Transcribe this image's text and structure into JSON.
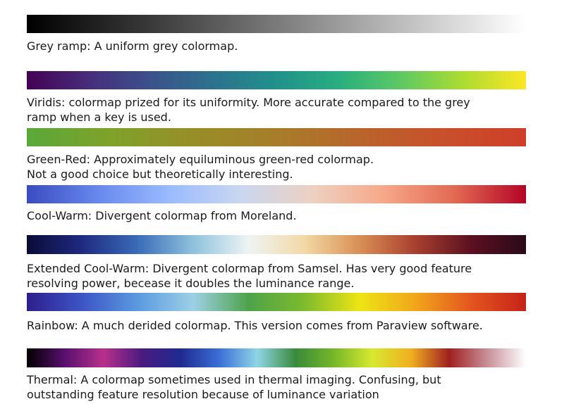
{
  "colormaps": [
    {
      "id": "grey",
      "caption": [
        "Grey ramp: A uniform grey colormap."
      ],
      "stops": [
        "#000000",
        "#3a3a3a",
        "#7a7a7a",
        "#bdbdbd",
        "#ffffff"
      ]
    },
    {
      "id": "viridis",
      "caption": [
        "Viridis: colormap prized for its uniformity.  More accurate compared to the grey",
        "ramp when a key is used."
      ],
      "stops": [
        "#440154",
        "#472d7b",
        "#3b528b",
        "#2c728e",
        "#21918c",
        "#28ae80",
        "#5ec962",
        "#addc30",
        "#fde725"
      ]
    },
    {
      "id": "green-red",
      "caption": [
        "Green-Red: Approximately equiluminous green-red colormap.",
        "Not a good choice but theoretically interesting."
      ],
      "stops": [
        "#5aa83a",
        "#7fa22a",
        "#978e28",
        "#a77d2a",
        "#b9652b",
        "#c8502b",
        "#cf3e2a"
      ]
    },
    {
      "id": "cool-warm",
      "caption": [
        "Cool-Warm: Divergent colormap from Moreland."
      ],
      "stops": [
        "#3b4cc0",
        "#6788ee",
        "#9abbff",
        "#c9d7f0",
        "#edd1c2",
        "#f7a889",
        "#e26952",
        "#b40426"
      ]
    },
    {
      "id": "extended-cool-warm",
      "caption": [
        "Extended Cool-Warm:  Divergent colormap from Samsel.  Has very good feature",
        "resolving power, becease it doubles the luminance range."
      ],
      "stops": [
        "#0b0b38",
        "#1f2a80",
        "#3a6cb8",
        "#8ec2dd",
        "#eef4f4",
        "#f3d9a6",
        "#d98f55",
        "#a8402f",
        "#5c1020",
        "#2a0a1a"
      ]
    },
    {
      "id": "rainbow",
      "caption": [
        "Rainbow: A much derided colormap. This version comes from Paraview software."
      ],
      "stops": [
        "#2e1e8c",
        "#3d55c6",
        "#5a9ae0",
        "#9dd0e6",
        "#4ea24a",
        "#7dbb2d",
        "#ede514",
        "#f1a61c",
        "#e4561f",
        "#c42218"
      ]
    },
    {
      "id": "thermal",
      "caption": [
        "Thermal: A colormap sometimes used in thermal imaging. Confusing, but",
        "outstanding feature resolution because of luminance variation"
      ],
      "stops": [
        "#000000",
        "#5a1070",
        "#b8308c",
        "#4a1a80",
        "#1e2a90",
        "#3a6ed6",
        "#8fd4e6",
        "#3a8a3a",
        "#76b828",
        "#d8e830",
        "#f0b020",
        "#a02020",
        "#c89098",
        "#ffffff"
      ]
    }
  ]
}
